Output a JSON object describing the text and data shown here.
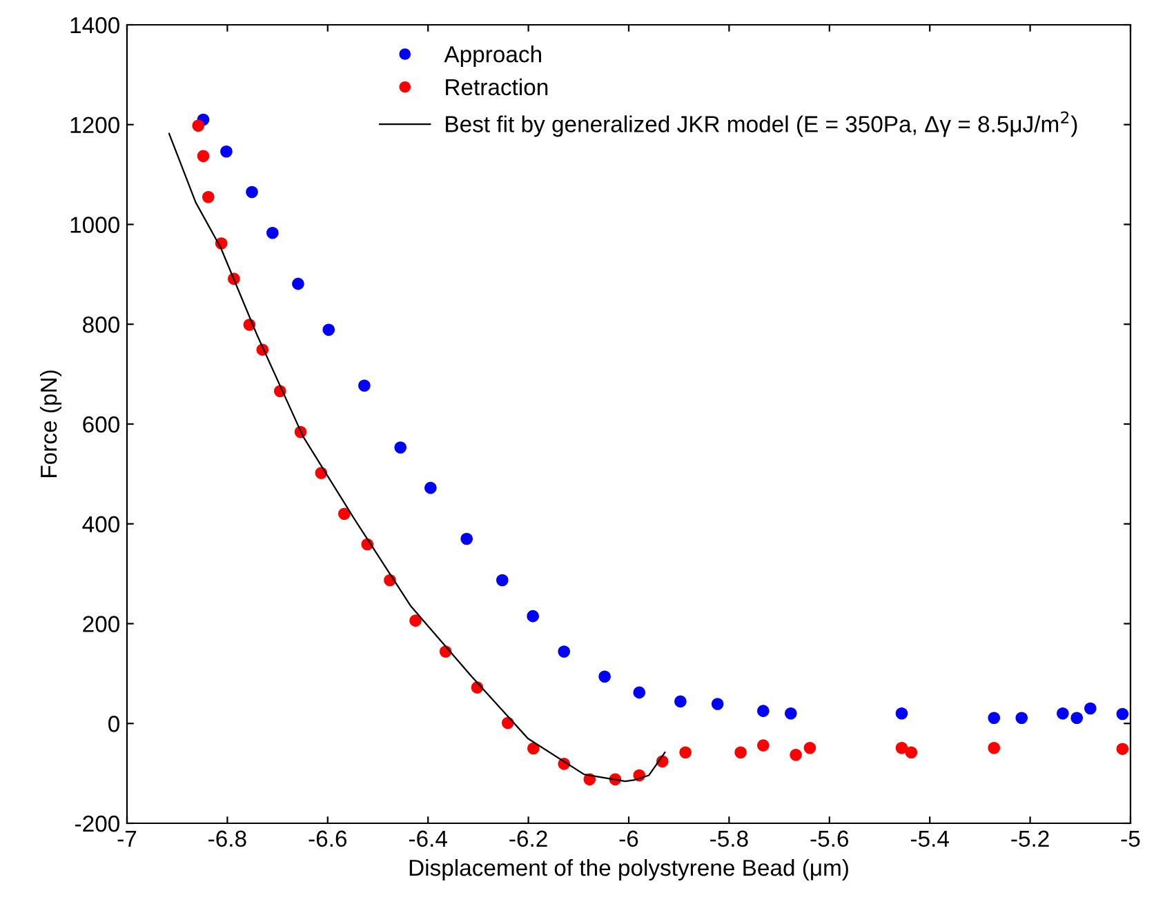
{
  "chart_data": {
    "type": "scatter",
    "xlabel": "Displacement of the polystyrene Bead (μm)",
    "ylabel": "Force (pN)",
    "xlim": [
      -7,
      -5
    ],
    "ylim": [
      -200,
      1400
    ],
    "xticks": [
      -7,
      -6.8,
      -6.6,
      -6.4,
      -6.2,
      -6,
      -5.8,
      -5.6,
      -5.4,
      -5.2,
      -5
    ],
    "yticks": [
      -200,
      0,
      200,
      400,
      600,
      800,
      1000,
      1200,
      1400
    ],
    "grid": false,
    "legend": "top",
    "marker": "circle",
    "series": [
      {
        "name": "Approach",
        "color": "#0000ff",
        "x": [
          -6.848,
          -6.802,
          -6.751,
          -6.71,
          -6.659,
          -6.598,
          -6.527,
          -6.455,
          -6.395,
          -6.323,
          -6.252,
          -6.191,
          -6.129,
          -6.048,
          -5.979,
          -5.897,
          -5.823,
          -5.732,
          -5.677,
          -5.456,
          -5.272,
          -5.217,
          -5.135,
          -5.107,
          -5.08,
          -5.016
        ],
        "values": [
          1210,
          1146,
          1065,
          983,
          881,
          789,
          677,
          553,
          472,
          370,
          287,
          215,
          144,
          94,
          62,
          44,
          39,
          25,
          20,
          20,
          11,
          11,
          20,
          11,
          30,
          19
        ]
      },
      {
        "name": "Retraction",
        "color": "#ff0000",
        "x": [
          -6.858,
          -6.848,
          -6.838,
          -6.812,
          -6.787,
          -6.756,
          -6.73,
          -6.695,
          -6.654,
          -6.613,
          -6.567,
          -6.521,
          -6.476,
          -6.425,
          -6.365,
          -6.302,
          -6.241,
          -6.19,
          -6.129,
          -6.078,
          -6.027,
          -5.979,
          -5.933,
          -5.887,
          -5.777,
          -5.732,
          -5.667,
          -5.639,
          -5.456,
          -5.437,
          -5.272,
          -5.016
        ],
        "values": [
          1198,
          1137,
          1055,
          962,
          891,
          799,
          749,
          666,
          584,
          502,
          420,
          359,
          287,
          206,
          144,
          72,
          1,
          -50,
          -81,
          -112,
          -112,
          -104,
          -76,
          -58,
          -58,
          -44,
          -63,
          -49,
          -49,
          -58,
          -49,
          -51
        ]
      },
      {
        "name": "Best fit by generalized JKR model (E = 350Pa, Δγ = 8.5μJ/m$^{2}$)",
        "type": "line",
        "color": "#000000",
        "marker": "none",
        "line_style": "solid",
        "x": [
          -6.916,
          -6.863,
          -6.813,
          -6.741,
          -6.649,
          -6.547,
          -6.435,
          -6.313,
          -6.201,
          -6.089,
          -6.007,
          -5.988,
          -5.96,
          -5.928
        ],
        "values": [
          1182,
          1044,
          953,
          779,
          575,
          410,
          236,
          94,
          -30,
          -102,
          -116,
          -113,
          -104,
          -58
        ]
      }
    ]
  }
}
